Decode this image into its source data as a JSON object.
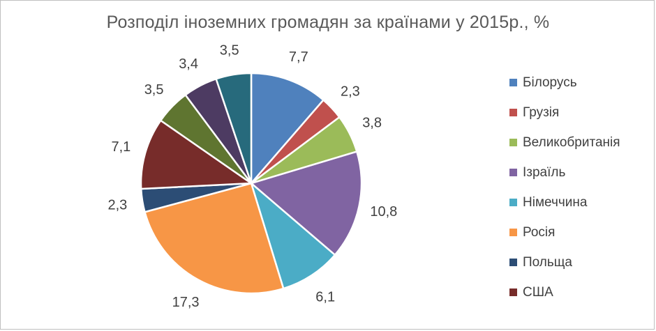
{
  "chart_data": {
    "type": "pie",
    "title": "Розподіл іноземних громадян за країнами у 2015р., %",
    "slices": [
      {
        "name": "Білорусь",
        "value": 7.7,
        "label": "7,7",
        "color": "#4f81bd",
        "in_legend": true
      },
      {
        "name": "Грузія",
        "value": 2.3,
        "label": "2,3",
        "color": "#c0504d",
        "in_legend": true
      },
      {
        "name": "Великобританія",
        "value": 3.8,
        "label": "3,8",
        "color": "#9bbb59",
        "in_legend": true
      },
      {
        "name": "Ізраїль",
        "value": 10.8,
        "label": "10,8",
        "color": "#8064a2",
        "in_legend": true
      },
      {
        "name": "Німеччина",
        "value": 6.1,
        "label": "6,1",
        "color": "#4bacc6",
        "in_legend": true
      },
      {
        "name": "Росія",
        "value": 17.3,
        "label": "17,3",
        "color": "#f79646",
        "in_legend": true
      },
      {
        "name": "Польща",
        "value": 2.3,
        "label": "2,3",
        "color": "#2c4d75",
        "in_legend": true
      },
      {
        "name": "США",
        "value": 7.1,
        "label": "7,1",
        "color": "#772c2a",
        "in_legend": true
      },
      {
        "name": "",
        "value": 3.5,
        "label": "3,5",
        "color": "#5f7530",
        "in_legend": false
      },
      {
        "name": "",
        "value": 3.4,
        "label": "3,4",
        "color": "#4d3b62",
        "in_legend": false
      },
      {
        "name": "",
        "value": 3.5,
        "label": "3,5",
        "color": "#276a7c",
        "in_legend": false
      }
    ],
    "legend_position": "right",
    "start_angle": "12 o'clock",
    "direction": "clockwise"
  }
}
